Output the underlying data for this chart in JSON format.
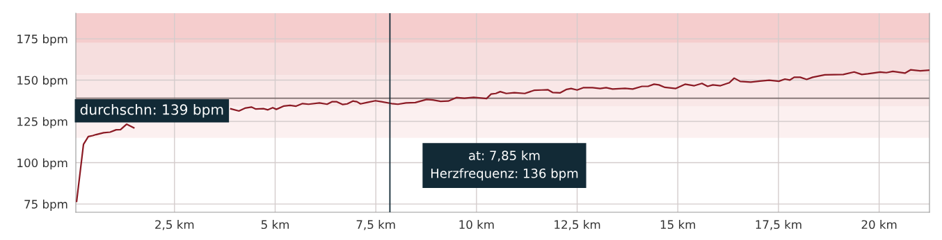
{
  "chart_data": {
    "type": "line",
    "x": [
      0.07,
      0.24,
      0.36,
      0.47,
      0.55,
      0.74,
      0.9,
      1.05,
      1.16,
      1.31,
      1.49,
      1.63,
      2.7,
      3.9,
      4.1,
      4.25,
      4.41,
      4.52,
      4.71,
      4.82,
      4.94,
      5.03,
      5.22,
      5.37,
      5.52,
      5.68,
      5.83,
      6.1,
      6.29,
      6.41,
      6.53,
      6.68,
      6.79,
      6.93,
      7.03,
      7.12,
      7.29,
      7.49,
      7.64,
      7.89,
      8.05,
      8.25,
      8.48,
      8.76,
      8.92,
      9.11,
      9.3,
      9.5,
      9.7,
      9.93,
      10.25,
      10.36,
      10.48,
      10.59,
      10.74,
      10.94,
      11.2,
      11.43,
      11.62,
      11.77,
      11.89,
      12.08,
      12.24,
      12.35,
      12.5,
      12.65,
      12.88,
      13.07,
      13.22,
      13.38,
      13.69,
      13.88,
      14.11,
      14.26,
      14.41,
      14.53,
      14.68,
      14.95,
      15.18,
      15.41,
      15.6,
      15.74,
      15.87,
      16.06,
      16.28,
      16.4,
      16.55,
      16.81,
      17.04,
      17.27,
      17.51,
      17.66,
      17.78,
      17.89,
      18.04,
      18.2,
      18.35,
      18.65,
      19.11,
      19.38,
      19.57,
      19.72,
      20.03,
      20.18,
      20.34,
      20.64,
      20.78,
      21.02,
      21.24
    ],
    "series": [
      {
        "color": "#8b1a24",
        "values": [
          76.6,
          111.1,
          115.8,
          116.4,
          117,
          118.1,
          118.5,
          119.9,
          120,
          123.3,
          121.1,
          null,
          null,
          132.6,
          131.3,
          133,
          133.7,
          132.5,
          132.7,
          132,
          133.3,
          132.3,
          134.3,
          134.7,
          134.2,
          135.8,
          135.4,
          136.2,
          135.4,
          136.9,
          136.9,
          135.2,
          135.6,
          137.3,
          136.9,
          135.6,
          136.5,
          137.5,
          136.9,
          135.8,
          135.4,
          136.2,
          136.4,
          138.3,
          138,
          137.1,
          137.3,
          139.4,
          139,
          139.6,
          138.8,
          141.5,
          141.9,
          143,
          141.9,
          142.4,
          141.9,
          143.8,
          144,
          144.2,
          142.5,
          142.3,
          144.4,
          144.9,
          144,
          145.4,
          145.4,
          144.9,
          145.4,
          144.6,
          145,
          144.6,
          146.2,
          146.2,
          147.5,
          147.1,
          145.6,
          144.9,
          147.5,
          146.6,
          148,
          146.2,
          147.1,
          146.6,
          148.4,
          151.2,
          149.2,
          148.8,
          149.4,
          149.9,
          149.3,
          150.6,
          150,
          151.7,
          151.7,
          150.4,
          151.7,
          153.2,
          153.4,
          154.9,
          153.4,
          153.8,
          154.9,
          154.5,
          155.3,
          154.2,
          156.2,
          155.6,
          156
        ]
      }
    ],
    "xlim": [
      0.05,
      21.25
    ],
    "ylim": [
      70,
      190.5
    ],
    "xticks": [
      {
        "value": 2.5,
        "label": "2,5 km"
      },
      {
        "value": 5,
        "label": "5 km"
      },
      {
        "value": 7.5,
        "label": "7,5 km"
      },
      {
        "value": 10,
        "label": "10 km"
      },
      {
        "value": 12.5,
        "label": "12,5 km"
      },
      {
        "value": 15,
        "label": "15 km"
      },
      {
        "value": 17.5,
        "label": "17,5 km"
      },
      {
        "value": 20,
        "label": "20 km"
      }
    ],
    "yticks": [
      {
        "value": 75,
        "label": "75 bpm"
      },
      {
        "value": 100,
        "label": "100 bpm"
      },
      {
        "value": 125,
        "label": "125 bpm"
      },
      {
        "value": 150,
        "label": "150 bpm"
      },
      {
        "value": 175,
        "label": "175 bpm"
      }
    ],
    "grid": true,
    "bands": [
      {
        "axis": "y",
        "from": 115,
        "to": 134,
        "color": "#fcf0f0"
      },
      {
        "axis": "y",
        "from": 134,
        "to": 153,
        "color": "#f9e7e7"
      },
      {
        "axis": "y",
        "from": 153,
        "to": 172.5,
        "color": "#f6dede"
      },
      {
        "axis": "y",
        "from": 172.5,
        "to": 190.5,
        "color": "#f5cdcd"
      }
    ],
    "ref_lines": [
      {
        "axis": "y",
        "value": 139,
        "label": "durchschn: 139 bpm",
        "color": "#7a6a6a"
      },
      {
        "axis": "x",
        "value": 7.85,
        "color": "#122a36"
      }
    ],
    "annotations": [
      "at: 7,85 km\nHerzfrequenz: 136 bpm"
    ]
  }
}
